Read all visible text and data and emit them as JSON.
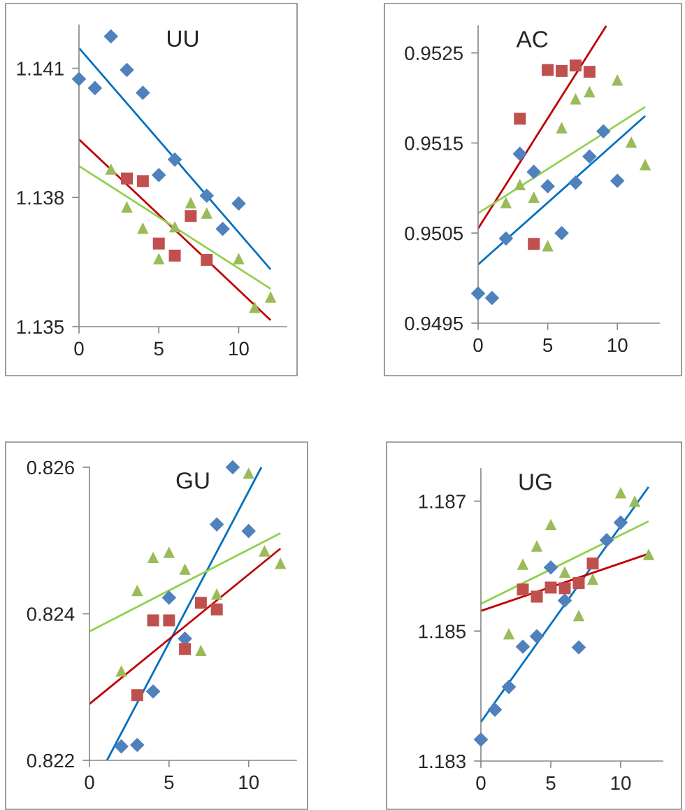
{
  "chart_data": [
    {
      "type": "scatter",
      "title": "UU",
      "xlim": [
        0,
        13
      ],
      "xticks": [
        0,
        5,
        10
      ],
      "ylim": [
        1.135,
        1.142
      ],
      "yticks": [
        1.135,
        1.138,
        1.141
      ],
      "grid": false,
      "series": [
        {
          "marker": "diamond",
          "color": "#4f81bd",
          "x": [
            0,
            1,
            2,
            3,
            4,
            5,
            6,
            8,
            9,
            10
          ],
          "values": [
            1.14075,
            1.14054,
            1.14174,
            1.14096,
            1.14043,
            1.13852,
            1.13888,
            1.13804,
            1.13727,
            1.13786
          ]
        },
        {
          "marker": "square",
          "color": "#c0504d",
          "x": [
            3,
            4,
            5,
            6,
            7,
            8
          ],
          "values": [
            1.13844,
            1.13838,
            1.13693,
            1.13665,
            1.13757,
            1.13655
          ]
        },
        {
          "marker": "triangle",
          "color": "#9bbb59",
          "x": [
            2,
            3,
            4,
            5,
            6,
            7,
            8,
            10,
            11,
            12
          ],
          "values": [
            1.13866,
            1.13778,
            1.13729,
            1.13658,
            1.13732,
            1.13788,
            1.13764,
            1.13658,
            1.13545,
            1.13569
          ]
        },
        {
          "type": "line",
          "marker": "none",
          "color": "#0070c0",
          "x": [
            0,
            12
          ],
          "values": [
            1.14147,
            1.13633
          ]
        },
        {
          "type": "line",
          "marker": "none",
          "color": "#c00000",
          "x": [
            0,
            12
          ],
          "values": [
            1.13935,
            1.13515
          ]
        },
        {
          "type": "line",
          "marker": "none",
          "color": "#92d050",
          "x": [
            0,
            12
          ],
          "values": [
            1.13873,
            1.13588
          ]
        }
      ]
    },
    {
      "type": "scatter",
      "title": "AC",
      "xlim": [
        0,
        13
      ],
      "xticks": [
        0,
        5,
        10
      ],
      "ylim": [
        0.9495,
        0.9528
      ],
      "yticks": [
        0.9495,
        0.9505,
        0.9515,
        0.9525
      ],
      "grid": false,
      "series": [
        {
          "marker": "diamond",
          "color": "#4f81bd",
          "x": [
            0,
            1,
            2,
            3,
            4,
            5,
            6,
            7,
            8,
            9,
            10
          ],
          "values": [
            0.94983,
            0.94978,
            0.95044,
            0.95138,
            0.95118,
            0.95102,
            0.9505,
            0.95106,
            0.95135,
            0.95163,
            0.95108
          ]
        },
        {
          "marker": "square",
          "color": "#c0504d",
          "x": [
            3,
            4,
            5,
            6,
            7,
            8
          ],
          "values": [
            0.95177,
            0.95038,
            0.95231,
            0.9523,
            0.95236,
            0.95229
          ]
        },
        {
          "marker": "triangle",
          "color": "#9bbb59",
          "x": [
            2,
            3,
            4,
            5,
            6,
            7,
            8,
            10,
            11,
            12
          ],
          "values": [
            0.95084,
            0.95104,
            0.9509,
            0.95036,
            0.95167,
            0.95199,
            0.95207,
            0.9522,
            0.95151,
            0.95126
          ]
        },
        {
          "type": "line",
          "marker": "none",
          "color": "#0070c0",
          "x": [
            0,
            12
          ],
          "values": [
            0.95015,
            0.9518
          ]
        },
        {
          "type": "line",
          "marker": "none",
          "color": "#c00000",
          "x": [
            0,
            9.2
          ],
          "values": [
            0.95055,
            0.9528
          ]
        },
        {
          "type": "line",
          "marker": "none",
          "color": "#92d050",
          "x": [
            0,
            12
          ],
          "values": [
            0.95072,
            0.9519
          ]
        }
      ]
    },
    {
      "type": "scatter",
      "title": "GU",
      "xlim": [
        0,
        13
      ],
      "xticks": [
        0,
        5,
        10
      ],
      "ylim": [
        0.822,
        0.826
      ],
      "yticks": [
        0.822,
        0.824,
        0.826
      ],
      "grid": false,
      "series": [
        {
          "marker": "diamond",
          "color": "#4f81bd",
          "x": [
            2,
            3,
            4,
            5,
            6,
            8,
            9,
            10
          ],
          "values": [
            0.82219,
            0.82221,
            0.82294,
            0.82422,
            0.82366,
            0.82522,
            0.826,
            0.82513
          ]
        },
        {
          "marker": "square",
          "color": "#c0504d",
          "x": [
            3,
            4,
            5,
            6,
            7,
            8
          ],
          "values": [
            0.82289,
            0.82391,
            0.82391,
            0.82352,
            0.82415,
            0.82406
          ]
        },
        {
          "marker": "triangle",
          "color": "#9bbb59",
          "x": [
            2,
            3,
            4,
            5,
            6,
            7,
            8,
            10,
            11,
            12
          ],
          "values": [
            0.82322,
            0.82432,
            0.82477,
            0.82484,
            0.82461,
            0.8235,
            0.82427,
            0.82592,
            0.82486,
            0.82469
          ]
        },
        {
          "type": "line",
          "marker": "none",
          "color": "#0070c0",
          "x": [
            1.1,
            10.8
          ],
          "values": [
            0.822,
            0.826
          ]
        },
        {
          "type": "line",
          "marker": "none",
          "color": "#c00000",
          "x": [
            0,
            12
          ],
          "values": [
            0.82277,
            0.82489
          ]
        },
        {
          "type": "line",
          "marker": "none",
          "color": "#92d050",
          "x": [
            0,
            12
          ],
          "values": [
            0.82376,
            0.8251
          ]
        }
      ]
    },
    {
      "type": "scatter",
      "title": "UG",
      "xlim": [
        0,
        13
      ],
      "xticks": [
        0,
        5,
        10
      ],
      "ylim": [
        1.183,
        1.1875
      ],
      "yticks": [
        1.183,
        1.185,
        1.187
      ],
      "grid": false,
      "series": [
        {
          "marker": "diamond",
          "color": "#4f81bd",
          "x": [
            0,
            1,
            2,
            3,
            4,
            5,
            6,
            7,
            9,
            10
          ],
          "values": [
            1.18333,
            1.18379,
            1.18414,
            1.18476,
            1.18492,
            1.18598,
            1.18547,
            1.18475,
            1.1864,
            1.18667
          ]
        },
        {
          "marker": "square",
          "color": "#c0504d",
          "x": [
            3,
            4,
            5,
            6,
            7,
            8
          ],
          "values": [
            1.18564,
            1.18553,
            1.18567,
            1.18566,
            1.18574,
            1.18604
          ]
        },
        {
          "marker": "triangle",
          "color": "#9bbb59",
          "x": [
            2,
            3,
            4,
            5,
            6,
            7,
            8,
            10,
            11,
            12
          ],
          "values": [
            1.18496,
            1.18603,
            1.18631,
            1.18664,
            1.18591,
            1.18524,
            1.1858,
            1.18713,
            1.187,
            1.18618
          ]
        },
        {
          "type": "line",
          "marker": "none",
          "color": "#0070c0",
          "x": [
            0,
            12
          ],
          "values": [
            1.1836,
            1.18722
          ]
        },
        {
          "type": "line",
          "marker": "none",
          "color": "#c00000",
          "x": [
            0,
            12
          ],
          "values": [
            1.18531,
            1.18619
          ]
        },
        {
          "type": "line",
          "marker": "none",
          "color": "#92d050",
          "x": [
            0,
            12
          ],
          "values": [
            1.18542,
            1.18669
          ]
        }
      ]
    }
  ]
}
